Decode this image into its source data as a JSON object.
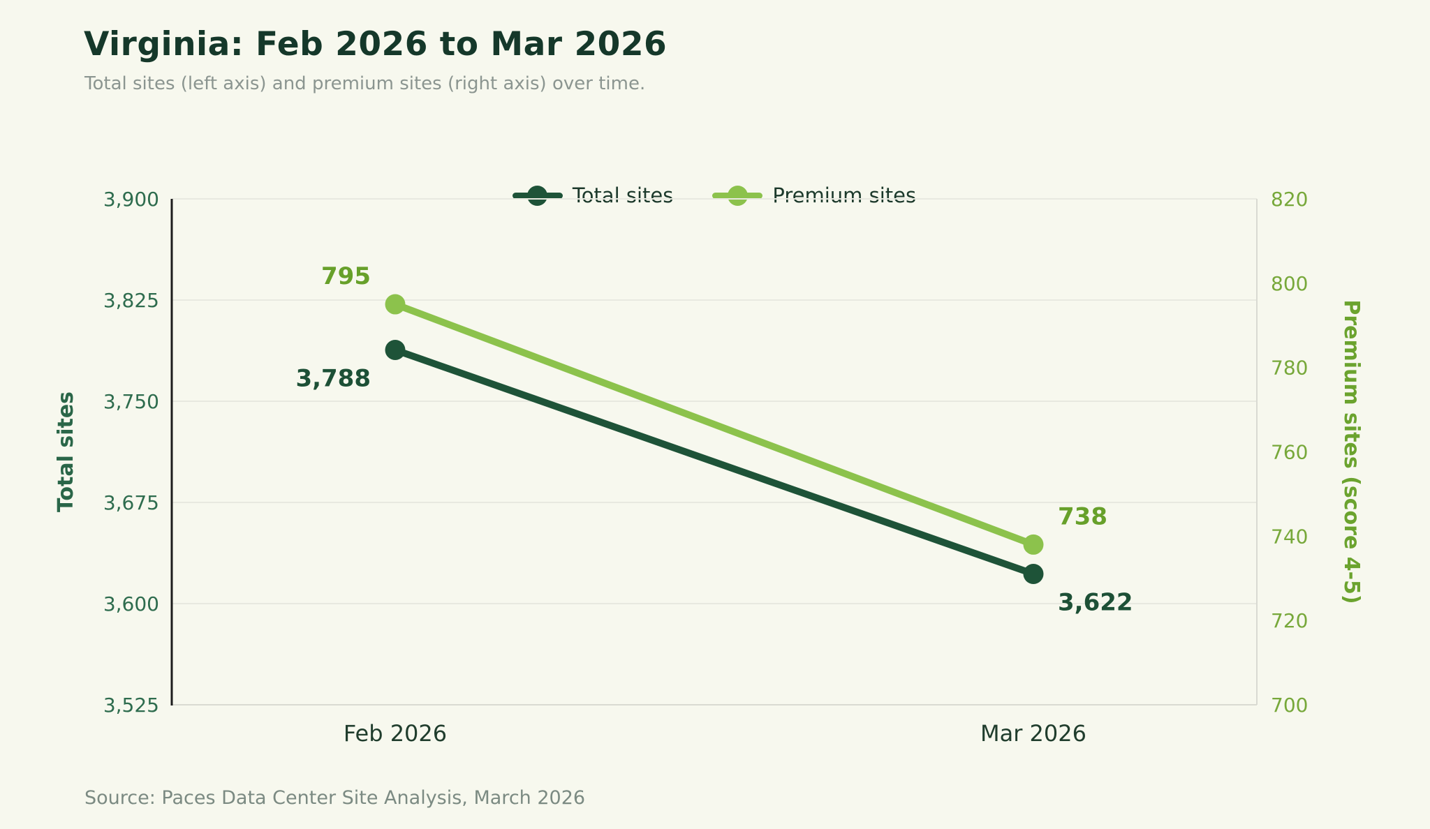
{
  "header": {
    "title": "Virginia: Feb 2026 to Mar 2026",
    "subtitle": "Total sites (left axis) and premium sites (right axis) over time."
  },
  "footer": {
    "source": "Source: Paces Data Center Site Analysis, March 2026"
  },
  "colors": {
    "background": "#f7f8ee",
    "title": "#15382a",
    "subtitle": "#8b9590",
    "legend_text": "#1c392b",
    "x_tick": "#203d2d",
    "gridline": "#e8e9e0",
    "spine": "#d9dad2",
    "left_spine": "#1c1c1c",
    "source": "#7b8a82"
  },
  "chart_data": {
    "type": "line",
    "title": "Virginia: Feb 2026 to Mar 2026",
    "x_categories": [
      "Feb 2026",
      "Mar 2026"
    ],
    "series": [
      {
        "name": "Total sites",
        "axis": "left",
        "values": [
          3788,
          3622
        ],
        "value_labels": [
          "3,788",
          "3,622"
        ],
        "color": "#1e5338",
        "label_color": "#1d5036"
      },
      {
        "name": "Premium sites",
        "axis": "right",
        "values": [
          795,
          738
        ],
        "value_labels": [
          "795",
          "738"
        ],
        "color": "#8cc24c",
        "label_color": "#67a02a"
      }
    ],
    "left_axis": {
      "title": "Total sites",
      "min": 3525,
      "max": 3900,
      "ticks": [
        3525,
        3600,
        3675,
        3750,
        3825,
        3900
      ],
      "tick_labels": [
        "3,525",
        "3,600",
        "3,675",
        "3,750",
        "3,825",
        "3,900"
      ],
      "tick_color": "#2e6c4e",
      "title_color": "#2a6648"
    },
    "right_axis": {
      "title": "Premium sites (score 4-5)",
      "min": 700,
      "max": 820,
      "ticks": [
        700,
        720,
        740,
        760,
        780,
        800,
        820
      ],
      "tick_labels": [
        "700",
        "720",
        "740",
        "760",
        "780",
        "800",
        "820"
      ],
      "tick_color": "#77a83a",
      "title_color": "#6ba32e"
    },
    "grid": true,
    "legend_position": "top-center"
  }
}
